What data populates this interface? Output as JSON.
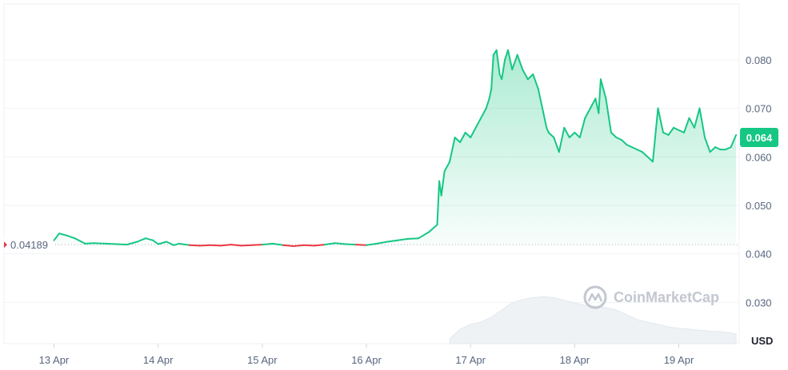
{
  "chart_data": {
    "type": "line",
    "unit_label": "USD",
    "watermark": "CoinMarketCap",
    "baseline_value": 0.04189,
    "baseline_label": "0.04189",
    "current_value": 0.064,
    "current_label": "0.064",
    "ylim": [
      0.0215,
      0.0915
    ],
    "y_ticks": [
      {
        "value": 0.08,
        "label": "0.080"
      },
      {
        "value": 0.07,
        "label": "0.070"
      },
      {
        "value": 0.06,
        "label": "0.060"
      },
      {
        "value": 0.05,
        "label": "0.050"
      },
      {
        "value": 0.04,
        "label": "0.040"
      },
      {
        "value": 0.03,
        "label": "0.030"
      }
    ],
    "x_ticks": [
      {
        "value": 1.0,
        "label": "13 Apr"
      },
      {
        "value": 2.0,
        "label": "14 Apr"
      },
      {
        "value": 3.0,
        "label": "15 Apr"
      },
      {
        "value": 4.0,
        "label": "16 Apr"
      },
      {
        "value": 5.0,
        "label": "17 Apr"
      },
      {
        "value": 6.0,
        "label": "18 Apr"
      },
      {
        "value": 7.0,
        "label": "19 Apr"
      }
    ],
    "xlim": [
      0.52,
      7.58
    ],
    "series": [
      {
        "x": [
          1.0,
          1.05,
          1.12,
          1.2,
          1.3,
          1.38,
          1.5,
          1.6,
          1.7,
          1.8,
          1.88,
          1.95,
          2.0,
          2.08,
          2.15,
          2.2,
          2.3,
          2.4,
          2.5,
          2.6,
          2.7,
          2.8,
          2.9,
          3.0,
          3.1,
          3.2,
          3.3,
          3.4,
          3.5,
          3.6,
          3.7,
          3.8,
          3.9,
          4.0,
          4.1,
          4.2,
          4.3,
          4.4,
          4.5,
          4.6,
          4.68,
          4.7,
          4.72,
          4.75,
          4.8,
          4.85,
          4.9,
          4.95,
          5.0,
          5.05,
          5.1,
          5.15,
          5.18,
          5.2,
          5.22,
          5.25,
          5.28,
          5.3,
          5.33,
          5.36,
          5.4,
          5.45,
          5.5,
          5.55,
          5.6,
          5.65,
          5.7,
          5.73,
          5.75,
          5.8,
          5.85,
          5.9,
          5.95,
          6.0,
          6.05,
          6.1,
          6.15,
          6.2,
          6.23,
          6.25,
          6.3,
          6.35,
          6.4,
          6.45,
          6.5,
          6.55,
          6.6,
          6.65,
          6.7,
          6.75,
          6.8,
          6.85,
          6.9,
          6.95,
          7.0,
          7.05,
          7.1,
          7.15,
          7.2,
          7.25,
          7.3,
          7.35,
          7.4,
          7.45,
          7.5,
          7.55
        ],
        "y": [
          0.0428,
          0.0442,
          0.0438,
          0.0432,
          0.0421,
          0.0422,
          0.0421,
          0.042,
          0.0419,
          0.0425,
          0.0432,
          0.0428,
          0.042,
          0.0425,
          0.0418,
          0.0421,
          0.0418,
          0.0417,
          0.0418,
          0.0417,
          0.0419,
          0.0417,
          0.0418,
          0.0419,
          0.0421,
          0.0418,
          0.0416,
          0.0418,
          0.0417,
          0.0419,
          0.0422,
          0.042,
          0.0419,
          0.0418,
          0.0421,
          0.0425,
          0.0428,
          0.0431,
          0.0432,
          0.0445,
          0.046,
          0.055,
          0.052,
          0.057,
          0.059,
          0.064,
          0.063,
          0.065,
          0.064,
          0.066,
          0.068,
          0.07,
          0.072,
          0.074,
          0.081,
          0.082,
          0.077,
          0.076,
          0.08,
          0.082,
          0.078,
          0.081,
          0.078,
          0.076,
          0.077,
          0.074,
          0.069,
          0.066,
          0.065,
          0.064,
          0.061,
          0.066,
          0.064,
          0.065,
          0.064,
          0.068,
          0.07,
          0.072,
          0.069,
          0.076,
          0.072,
          0.065,
          0.064,
          0.0635,
          0.0625,
          0.062,
          0.0615,
          0.061,
          0.06,
          0.059,
          0.07,
          0.065,
          0.0645,
          0.066,
          0.0655,
          0.065,
          0.068,
          0.066,
          0.07,
          0.064,
          0.061,
          0.062,
          0.0615,
          0.0615,
          0.062,
          0.0645
        ]
      }
    ],
    "volume": {
      "x": [
        4.8,
        4.9,
        5.0,
        5.1,
        5.2,
        5.3,
        5.4,
        5.5,
        5.6,
        5.7,
        5.8,
        5.9,
        6.0,
        6.1,
        6.2,
        6.3,
        6.4,
        6.5,
        6.6,
        6.7,
        6.8,
        6.9,
        7.0,
        7.1,
        7.2,
        7.3,
        7.4,
        7.5,
        7.55
      ],
      "level": [
        0.1,
        0.3,
        0.4,
        0.45,
        0.55,
        0.7,
        0.85,
        0.92,
        0.96,
        0.98,
        0.96,
        0.9,
        0.85,
        0.8,
        0.78,
        0.75,
        0.7,
        0.6,
        0.5,
        0.45,
        0.4,
        0.35,
        0.32,
        0.3,
        0.28,
        0.26,
        0.25,
        0.22,
        0.2
      ]
    },
    "colors": {
      "up": "#16c784",
      "down": "#ea3943",
      "grid": "#eff2f5",
      "baseline": "#a6b0c3",
      "volume": "#eff2f5"
    }
  }
}
